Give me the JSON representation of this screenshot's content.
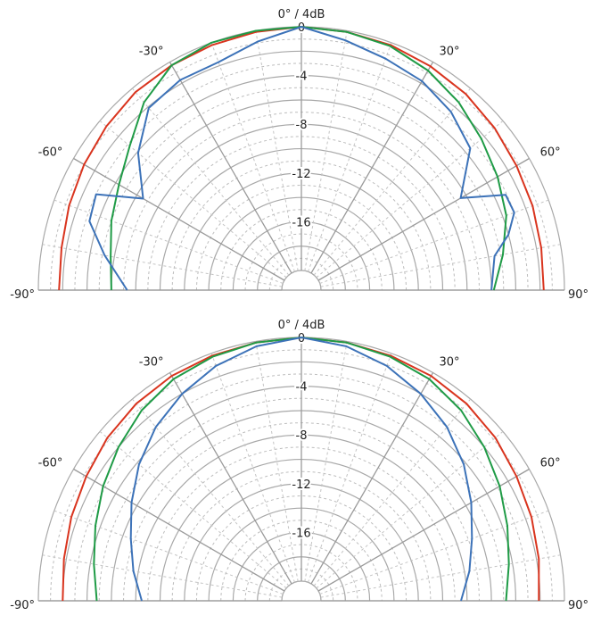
{
  "chart_data": [
    {
      "type": "polar",
      "title": "0° / 4dB",
      "angle_labels": [
        {
          "deg": -90,
          "text": "-90°"
        },
        {
          "deg": -60,
          "text": "-60°"
        },
        {
          "deg": -30,
          "text": "-30°"
        },
        {
          "deg": 30,
          "text": "30°"
        },
        {
          "deg": 60,
          "text": "60°"
        },
        {
          "deg": 90,
          "text": "90°"
        }
      ],
      "radial_ticks": [
        {
          "db": 0,
          "text": "0"
        },
        {
          "db": -4,
          "text": "-4"
        },
        {
          "db": -8,
          "text": "-8"
        },
        {
          "db": -12,
          "text": "-12"
        },
        {
          "db": -16,
          "text": "-16"
        }
      ],
      "r_range_db": [
        -20,
        0
      ],
      "series": [
        {
          "color": "#d9341e",
          "points": [
            [
              -90,
              -1.7
            ],
            [
              -80,
              -1.6
            ],
            [
              -70,
              -1.3
            ],
            [
              -60,
              -1.0
            ],
            [
              -50,
              -0.7
            ],
            [
              -40,
              -0.4
            ],
            [
              -30,
              -0.3
            ],
            [
              -20,
              -0.2
            ],
            [
              -10,
              -0.1
            ],
            [
              0,
              0
            ],
            [
              10,
              -0.1
            ],
            [
              20,
              -0.2
            ],
            [
              30,
              -0.4
            ],
            [
              40,
              -0.6
            ],
            [
              50,
              -0.9
            ],
            [
              60,
              -1.2
            ],
            [
              70,
              -1.4
            ],
            [
              80,
              -1.6
            ],
            [
              90,
              -1.7
            ]
          ]
        },
        {
          "color": "#1f9b46",
          "points": [
            [
              -90,
              -6.0
            ],
            [
              -80,
              -5.7
            ],
            [
              -70,
              -5.0
            ],
            [
              -60,
              -4.3
            ],
            [
              -50,
              -3.2
            ],
            [
              -40,
              -1.5
            ],
            [
              -30,
              -0.3
            ],
            [
              -20,
              0
            ],
            [
              -10,
              0
            ],
            [
              0,
              0
            ],
            [
              10,
              -0.1
            ],
            [
              20,
              -0.3
            ],
            [
              30,
              -0.8
            ],
            [
              40,
              -1.5
            ],
            [
              50,
              -2.3
            ],
            [
              60,
              -3.0
            ],
            [
              70,
              -3.7
            ],
            [
              80,
              -4.8
            ],
            [
              90,
              -5.8
            ]
          ]
        },
        {
          "color": "#3c72b8",
          "points": [
            [
              -90,
              -7.3
            ],
            [
              -80,
              -5.2
            ],
            [
              -72,
              -3.3
            ],
            [
              -65,
              -3.0
            ],
            [
              -60,
              -6.6
            ],
            [
              -50,
              -4.1
            ],
            [
              -40,
              -2.1
            ],
            [
              -30,
              -1.7
            ],
            [
              -20,
              -1.7
            ],
            [
              -10,
              -0.9
            ],
            [
              0,
              0
            ],
            [
              10,
              -0.8
            ],
            [
              20,
              -1.4
            ],
            [
              30,
              -1.8
            ],
            [
              40,
              -2.5
            ],
            [
              50,
              -3.5
            ],
            [
              60,
              -6.5
            ],
            [
              65,
              -3.1
            ],
            [
              70,
              -3.0
            ],
            [
              75,
              -4.0
            ],
            [
              80,
              -5.5
            ],
            [
              90,
              -6.0
            ]
          ]
        }
      ]
    },
    {
      "type": "polar",
      "title": "0° / 4dB",
      "angle_labels": [
        {
          "deg": -90,
          "text": "-90°"
        },
        {
          "deg": -60,
          "text": "-60°"
        },
        {
          "deg": -30,
          "text": "-30°"
        },
        {
          "deg": 30,
          "text": "30°"
        },
        {
          "deg": 60,
          "text": "60°"
        },
        {
          "deg": 90,
          "text": "90°"
        }
      ],
      "radial_ticks": [
        {
          "db": 0,
          "text": "0"
        },
        {
          "db": -4,
          "text": "-4"
        },
        {
          "db": -8,
          "text": "-8"
        },
        {
          "db": -12,
          "text": "-12"
        },
        {
          "db": -16,
          "text": "-16"
        }
      ],
      "r_range_db": [
        -20,
        0
      ],
      "series": [
        {
          "color": "#d9341e",
          "points": [
            [
              -90,
              -2.0
            ],
            [
              -80,
              -1.8
            ],
            [
              -70,
              -1.5
            ],
            [
              -60,
              -1.2
            ],
            [
              -50,
              -0.8
            ],
            [
              -40,
              -0.5
            ],
            [
              -30,
              -0.3
            ],
            [
              -20,
              -0.2
            ],
            [
              -10,
              -0.1
            ],
            [
              0,
              0
            ],
            [
              10,
              -0.1
            ],
            [
              20,
              -0.2
            ],
            [
              30,
              -0.3
            ],
            [
              40,
              -0.5
            ],
            [
              50,
              -0.8
            ],
            [
              60,
              -1.2
            ],
            [
              70,
              -1.5
            ],
            [
              80,
              -1.8
            ],
            [
              90,
              -2.1
            ]
          ]
        },
        {
          "color": "#1f9b46",
          "points": [
            [
              -90,
              -4.8
            ],
            [
              -80,
              -4.3
            ],
            [
              -70,
              -3.6
            ],
            [
              -60,
              -2.8
            ],
            [
              -50,
              -2.0
            ],
            [
              -40,
              -1.2
            ],
            [
              -30,
              -0.6
            ],
            [
              -20,
              -0.3
            ],
            [
              -10,
              -0.1
            ],
            [
              0,
              0
            ],
            [
              10,
              -0.1
            ],
            [
              20,
              -0.3
            ],
            [
              30,
              -0.6
            ],
            [
              40,
              -1.2
            ],
            [
              50,
              -2.0
            ],
            [
              60,
              -2.8
            ],
            [
              70,
              -3.6
            ],
            [
              80,
              -4.3
            ],
            [
              90,
              -4.8
            ]
          ]
        },
        {
          "color": "#3c72b8",
          "points": [
            [
              -90,
              -8.5
            ],
            [
              -80,
              -7.6
            ],
            [
              -70,
              -6.7
            ],
            [
              -60,
              -5.5
            ],
            [
              -50,
              -4.2
            ],
            [
              -40,
              -3.0
            ],
            [
              -30,
              -2.0
            ],
            [
              -20,
              -1.1
            ],
            [
              -10,
              -0.4
            ],
            [
              0,
              0
            ],
            [
              10,
              -0.4
            ],
            [
              20,
              -1.1
            ],
            [
              30,
              -2.0
            ],
            [
              40,
              -3.0
            ],
            [
              50,
              -4.2
            ],
            [
              60,
              -5.5
            ],
            [
              70,
              -6.7
            ],
            [
              80,
              -7.6
            ],
            [
              90,
              -8.5
            ]
          ]
        }
      ]
    }
  ]
}
